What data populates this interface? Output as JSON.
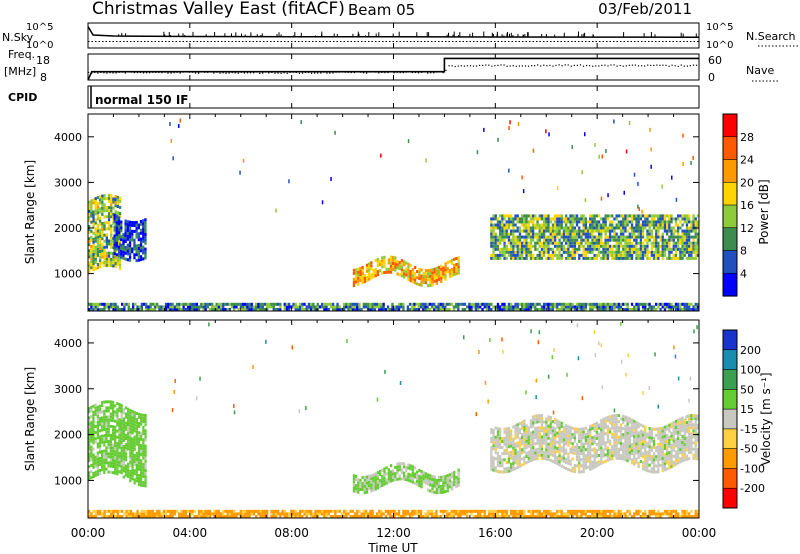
{
  "header": {
    "station": "Christmas Valley East (fitACF)",
    "beam": "Beam 05",
    "date": "03/Feb/2011"
  },
  "top_panels": {
    "nsky_label": "N.Sky",
    "nsearch_label": "N.Search",
    "noise_ticks": [
      "10^5",
      "10^0"
    ],
    "freq_label": "Freq.",
    "freq_unit": "[MHz]",
    "freq_ticks": [
      "18",
      "8"
    ],
    "nave_label": "Nave",
    "nave_ticks": [
      "60",
      "0"
    ],
    "cpid_label": "CPID",
    "cpid_value": "normal 150 IF"
  },
  "axes": {
    "x_label": "Time UT",
    "x_ticks": [
      "00:00",
      "04:00",
      "08:00",
      "12:00",
      "16:00",
      "20:00",
      "00:00"
    ],
    "y_label": "Slant Range [km]",
    "y_ticks": [
      "1000",
      "2000",
      "3000",
      "4000"
    ]
  },
  "colorbars": {
    "power": {
      "label": "Power [dB]",
      "ticks": [
        "28",
        "24",
        "20",
        "16",
        "12",
        "8",
        "4"
      ],
      "colors": [
        "#ff0000",
        "#ff5a00",
        "#ff9900",
        "#ffd400",
        "#8ecb3a",
        "#3c8c50",
        "#2050c0",
        "#0000ff"
      ]
    },
    "velocity": {
      "label": "Velocity [m s⁻¹]",
      "ticks": [
        "200",
        "100",
        "50",
        "15",
        "-15",
        "-50",
        "-100",
        "-200"
      ],
      "colors": [
        "#1a33cc",
        "#1a8cb0",
        "#3aa050",
        "#66cc33",
        "#c8c8c0",
        "#ffd040",
        "#ff9a00",
        "#ff5a00",
        "#ff0000"
      ]
    }
  },
  "chart_data": [
    {
      "type": "line",
      "title": "N.Sky / N.Search",
      "x_range_hours": [
        0,
        24
      ],
      "ylim": [
        1,
        100000
      ],
      "log_scale": true,
      "series": [
        {
          "name": "N.Sky",
          "x": [
            0,
            0.2,
            1,
            4,
            8,
            12,
            16,
            20,
            24
          ],
          "y": [
            20000,
            400,
            250,
            200,
            180,
            170,
            160,
            150,
            140
          ]
        },
        {
          "name": "N.Search",
          "x": [
            0,
            4,
            8,
            12,
            16,
            20,
            24
          ],
          "y": [
            20,
            20,
            20,
            20,
            20,
            20,
            20
          ]
        }
      ]
    },
    {
      "type": "line",
      "title": "Freq. / Nave",
      "x_range_hours": [
        0,
        24
      ],
      "series": [
        {
          "name": "Freq.",
          "x": [
            0,
            0.15,
            14.0,
            14.0,
            24
          ],
          "y": [
            8.0,
            11.2,
            11.2,
            16.3,
            16.3
          ],
          "ylim": [
            8,
            18
          ]
        },
        {
          "name": "Nave",
          "x": [
            0,
            4,
            8,
            12,
            14,
            14.1,
            18,
            24
          ],
          "y": [
            18,
            19,
            18,
            19,
            19,
            34,
            35,
            34
          ],
          "ylim": [
            0,
            60
          ]
        }
      ]
    },
    {
      "type": "heatmap",
      "title": "Power",
      "x_range_hours": [
        0,
        24
      ],
      "ylim": [
        180,
        4500
      ],
      "clim": [
        0,
        32
      ],
      "regions": [
        {
          "t0": 0.0,
          "t1": 1.3,
          "r0": 1000,
          "r1": 2600,
          "level": 14
        },
        {
          "t0": 1.0,
          "t1": 2.3,
          "r0": 1400,
          "r1": 2300,
          "level": 5
        },
        {
          "t0": 10.4,
          "t1": 14.6,
          "r0": 850,
          "r1": 1250,
          "level": 20
        },
        {
          "t0": 15.8,
          "t1": 24.0,
          "r0": 1300,
          "r1": 2300,
          "level": 12
        },
        {
          "t0": 0.0,
          "t1": 24.0,
          "r0": 180,
          "r1": 350,
          "level": 9
        }
      ]
    },
    {
      "type": "heatmap",
      "title": "Velocity",
      "x_range_hours": [
        0,
        24
      ],
      "ylim": [
        180,
        4500
      ],
      "clim": [
        -200,
        200
      ],
      "regions": [
        {
          "t0": 0.0,
          "t1": 2.3,
          "r0": 1000,
          "r1": 2600,
          "level": 30
        },
        {
          "t0": 10.4,
          "t1": 14.6,
          "r0": 850,
          "r1": 1250,
          "level": 20
        },
        {
          "t0": 15.8,
          "t1": 24.0,
          "r0": 1300,
          "r1": 2300,
          "level": 0
        },
        {
          "t0": 0.0,
          "t1": 24.0,
          "r0": 180,
          "r1": 350,
          "level": -60
        }
      ]
    }
  ]
}
